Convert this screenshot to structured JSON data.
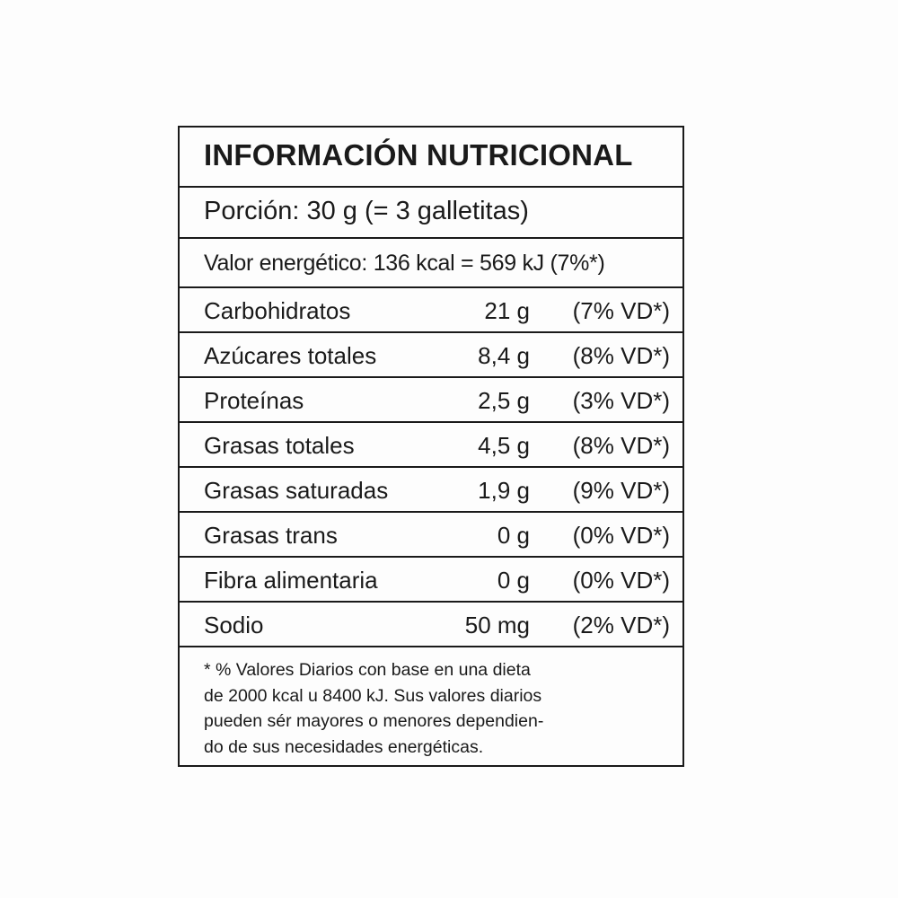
{
  "title": "INFORMACIÓN NUTRICIONAL",
  "portion": "Porción: 30 g (= 3 galletitas)",
  "energy": "Valor energético: 136 kcal = 569 kJ (7%*)",
  "nutrients": [
    {
      "name": "Carbohidratos",
      "amount": "21 g",
      "vd": "(7% VD*)"
    },
    {
      "name": "Azúcares totales",
      "amount": "8,4 g",
      "vd": "(8% VD*)"
    },
    {
      "name": "Proteínas",
      "amount": "2,5 g",
      "vd": "(3% VD*)"
    },
    {
      "name": "Grasas totales",
      "amount": "4,5 g",
      "vd": "(8% VD*)"
    },
    {
      "name": "Grasas saturadas",
      "amount": "1,9 g",
      "vd": "(9% VD*)"
    },
    {
      "name": "Grasas trans",
      "amount": "0 g",
      "vd": "(0% VD*)"
    },
    {
      "name": "Fibra alimentaria",
      "amount": "0 g",
      "vd": "(0% VD*)"
    },
    {
      "name": "Sodio",
      "amount": "50 mg",
      "vd": "(2% VD*)"
    }
  ],
  "footnote": [
    "* % Valores Diarios con base en una dieta",
    "de 2000 kcal u 8400 kJ. Sus valores diarios",
    "pueden sér mayores o menores dependien-",
    "do de sus necesidades energéticas."
  ]
}
